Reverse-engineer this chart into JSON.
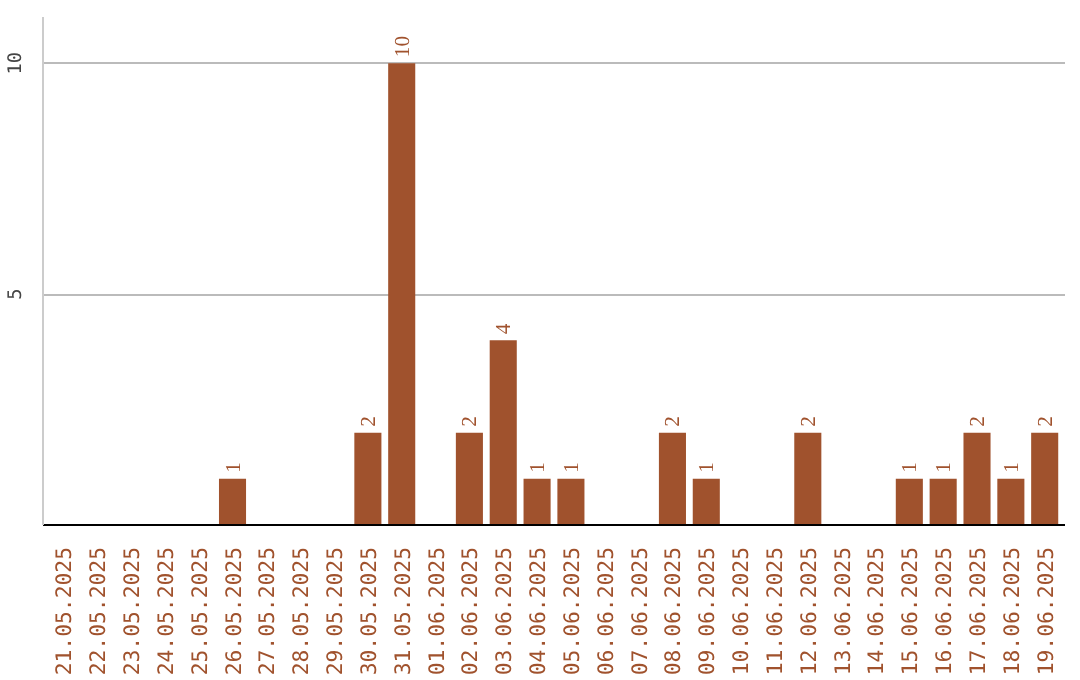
{
  "chart_data": {
    "type": "bar",
    "categories": [
      "21.05.2025",
      "22.05.2025",
      "23.05.2025",
      "24.05.2025",
      "25.05.2025",
      "26.05.2025",
      "27.05.2025",
      "28.05.2025",
      "29.05.2025",
      "30.05.2025",
      "31.05.2025",
      "01.06.2025",
      "02.06.2025",
      "03.06.2025",
      "04.06.2025",
      "05.06.2025",
      "06.06.2025",
      "07.06.2025",
      "08.06.2025",
      "09.06.2025",
      "10.06.2025",
      "11.06.2025",
      "12.06.2025",
      "13.06.2025",
      "14.06.2025",
      "15.06.2025",
      "16.06.2025",
      "17.06.2025",
      "18.06.2025",
      "19.06.2025"
    ],
    "values": [
      0,
      0,
      0,
      0,
      0,
      1,
      0,
      0,
      0,
      2,
      10,
      0,
      2,
      4,
      1,
      1,
      0,
      0,
      2,
      1,
      0,
      0,
      2,
      0,
      0,
      1,
      1,
      2,
      1,
      2
    ],
    "value_labels": [
      null,
      null,
      null,
      null,
      null,
      "1",
      null,
      null,
      null,
      "2",
      "10",
      null,
      "2",
      "4",
      "1",
      "1",
      null,
      null,
      "2",
      "1",
      null,
      null,
      "2",
      null,
      null,
      "1",
      "1",
      "2",
      "1",
      "2"
    ],
    "color": "#a0522d",
    "ylim": [
      0,
      11
    ],
    "yticks": [
      5,
      10
    ],
    "grid": "y"
  }
}
